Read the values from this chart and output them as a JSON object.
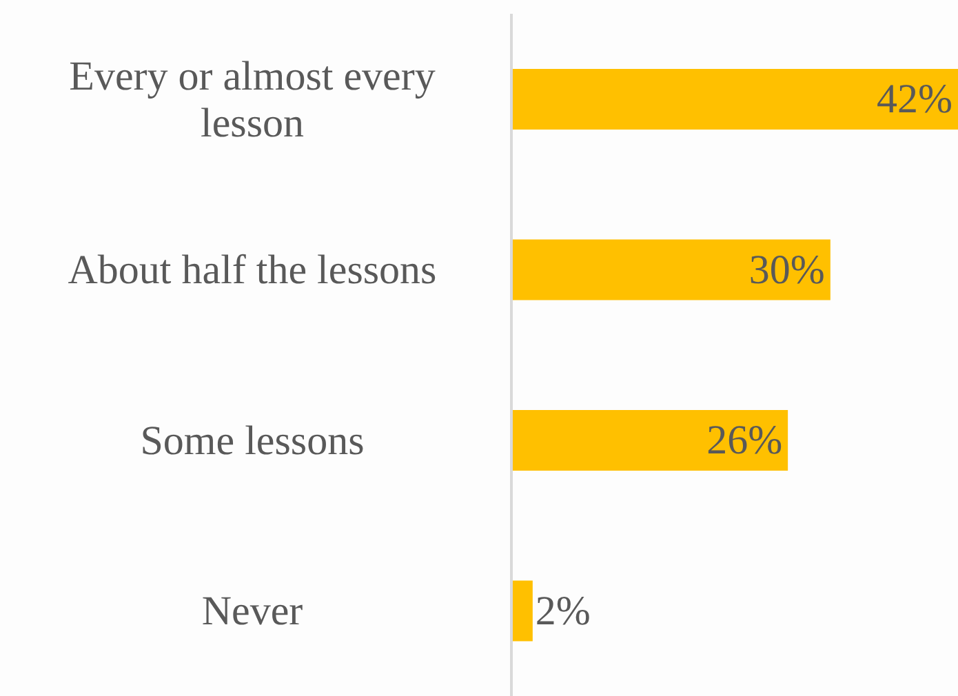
{
  "chart_data": {
    "type": "bar",
    "orientation": "horizontal",
    "categories": [
      "Every or almost every lesson",
      "About half the lessons",
      "Some lessons",
      "Never"
    ],
    "values": [
      42,
      30,
      26,
      2
    ],
    "color": "#ffc000",
    "value_labels": [
      "42%",
      "30%",
      "26%",
      "2%"
    ],
    "grid": false,
    "legend": false
  }
}
